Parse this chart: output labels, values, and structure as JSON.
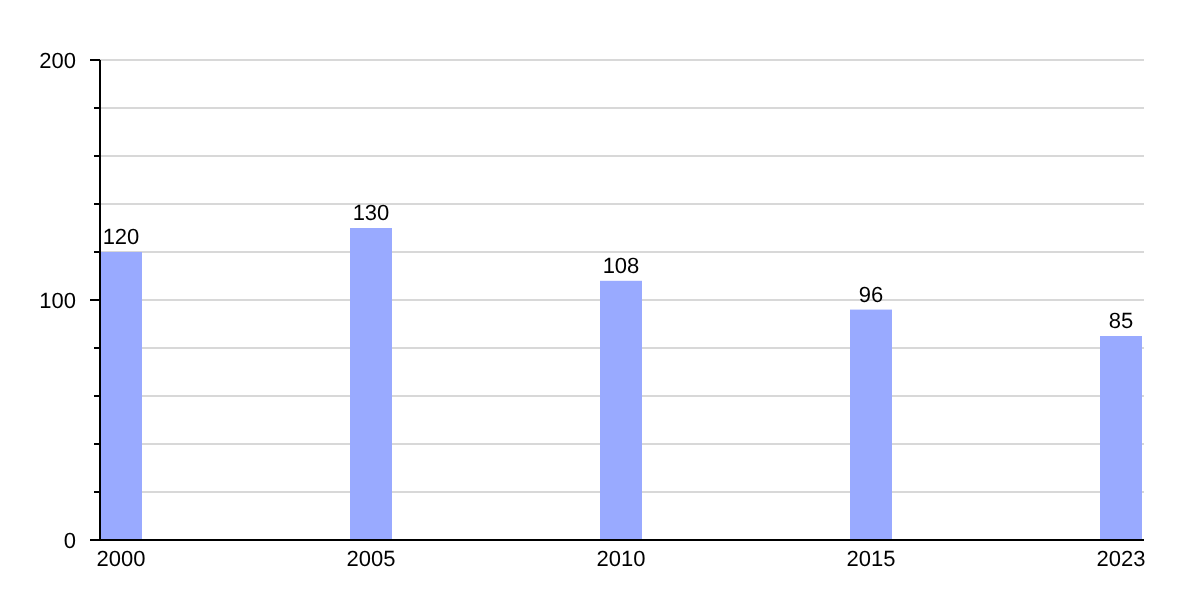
{
  "chart_data": {
    "type": "bar",
    "categories": [
      "2000",
      "2005",
      "2010",
      "2015",
      "2023"
    ],
    "values": [
      120,
      130,
      108,
      96,
      85
    ],
    "color": "#99aaff",
    "ylim": [
      0,
      200
    ],
    "yticks": [
      0,
      {
        "value": 20,
        "label": null
      },
      {
        "value": 40,
        "label": null
      },
      {
        "value": 60,
        "label": null
      },
      {
        "value": 80,
        "label": null
      },
      100,
      {
        "value": 120,
        "label": null
      },
      {
        "value": 140,
        "label": null
      },
      {
        "value": 160,
        "label": null
      },
      {
        "value": 180,
        "label": null
      },
      200
    ],
    "grid": true,
    "data_labels": true
  }
}
